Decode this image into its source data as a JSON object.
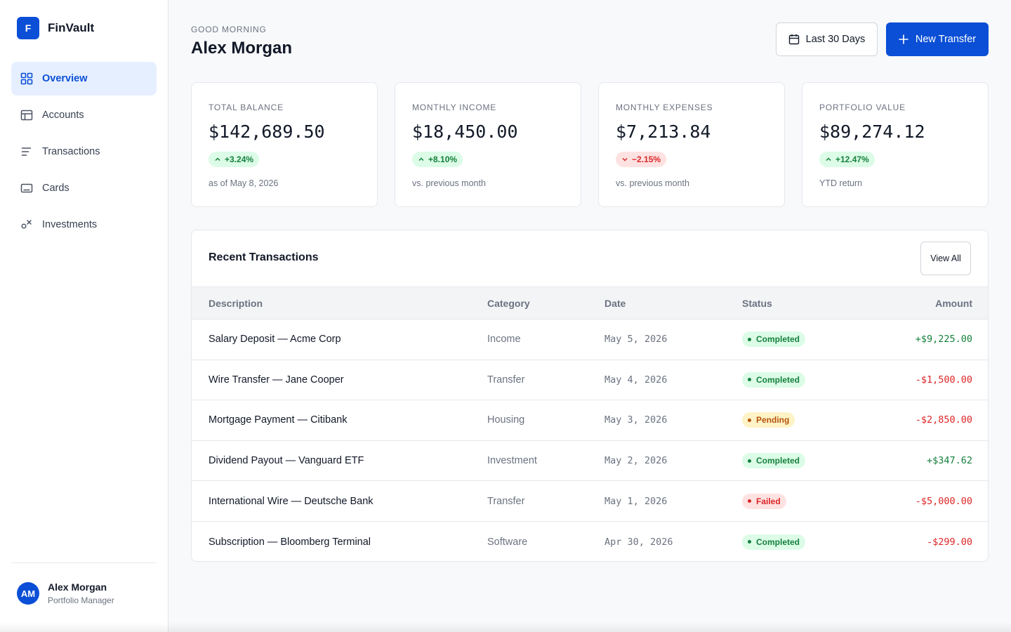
{
  "brand": {
    "logo_letter": "F",
    "name": "FinVault",
    "color": "#0b4fd6"
  },
  "nav": {
    "items": [
      {
        "label": "Overview",
        "icon": "grid-icon",
        "active": true
      },
      {
        "label": "Accounts",
        "icon": "table-icon",
        "active": false
      },
      {
        "label": "Transactions",
        "icon": "list-icon",
        "active": false
      },
      {
        "label": "Cards",
        "icon": "card-icon",
        "active": false
      },
      {
        "label": "Investments",
        "icon": "investment-icon",
        "active": false
      }
    ]
  },
  "profile": {
    "initials": "AM",
    "name": "Alex Morgan",
    "role": "Portfolio Manager"
  },
  "header": {
    "greeting": "GOOD MORNING",
    "name": "Alex Morgan",
    "range_label": "Last 30 Days",
    "primary_label": "New Transfer"
  },
  "stats": [
    {
      "label": "TOTAL BALANCE",
      "value": "$142,689.50",
      "change": "+3.24%",
      "trend": "up",
      "note": "as of May 8, 2026"
    },
    {
      "label": "MONTHLY INCOME",
      "value": "$18,450.00",
      "change": "+8.10%",
      "trend": "up",
      "note": "vs. previous month"
    },
    {
      "label": "MONTHLY EXPENSES",
      "value": "$7,213.84",
      "change": "−2.15%",
      "trend": "down",
      "note": "vs. previous month"
    },
    {
      "label": "PORTFOLIO VALUE",
      "value": "$89,274.12",
      "change": "+12.47%",
      "trend": "up",
      "note": "YTD return"
    }
  ],
  "transactions": {
    "title": "Recent Transactions",
    "view_all_label": "View All",
    "columns": [
      "Description",
      "Category",
      "Date",
      "Status",
      "Amount"
    ],
    "rows": [
      {
        "description": "Salary Deposit — Acme Corp",
        "category": "Income",
        "date": "May 5, 2026",
        "status": "Completed",
        "status_type": "completed",
        "amount": "+$9,225.00",
        "sign": "pos"
      },
      {
        "description": "Wire Transfer — Jane Cooper",
        "category": "Transfer",
        "date": "May 4, 2026",
        "status": "Completed",
        "status_type": "completed",
        "amount": "-$1,500.00",
        "sign": "neg"
      },
      {
        "description": "Mortgage Payment — Citibank",
        "category": "Housing",
        "date": "May 3, 2026",
        "status": "Pending",
        "status_type": "pending",
        "amount": "-$2,850.00",
        "sign": "neg"
      },
      {
        "description": "Dividend Payout — Vanguard ETF",
        "category": "Investment",
        "date": "May 2, 2026",
        "status": "Completed",
        "status_type": "completed",
        "amount": "+$347.62",
        "sign": "pos"
      },
      {
        "description": "International Wire — Deutsche Bank",
        "category": "Transfer",
        "date": "May 1, 2026",
        "status": "Failed",
        "status_type": "failed",
        "amount": "-$5,000.00",
        "sign": "neg"
      },
      {
        "description": "Subscription — Bloomberg Terminal",
        "category": "Software",
        "date": "Apr 30, 2026",
        "status": "Completed",
        "status_type": "completed",
        "amount": "-$299.00",
        "sign": "neg"
      }
    ]
  }
}
